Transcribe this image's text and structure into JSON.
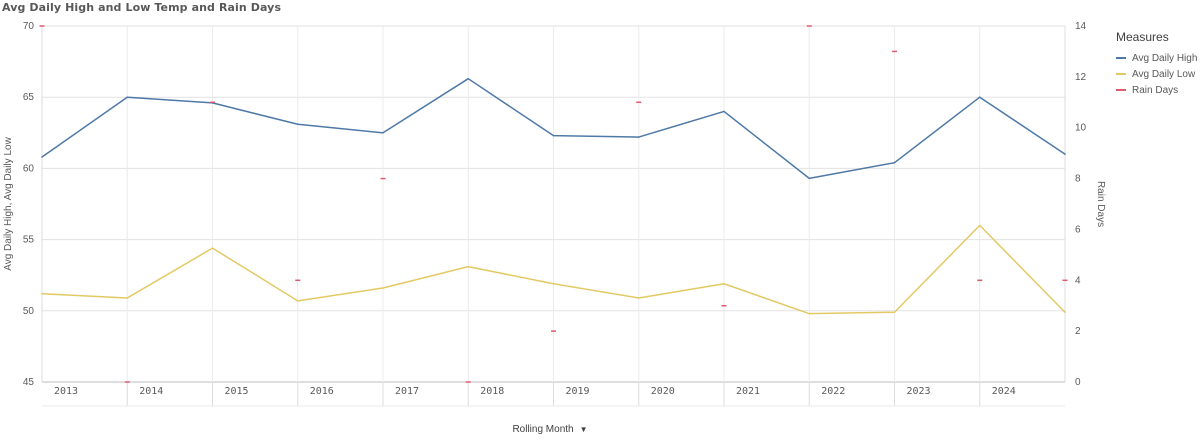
{
  "chart_data": {
    "type": "line",
    "title": "Avg Daily High and Low Temp and Rain Days",
    "xlabel": "Rolling Month",
    "ylabel_left": "Avg Daily High, Avg Daily Low",
    "ylabel_right": "Rain Days",
    "ylim_left": [
      45,
      70
    ],
    "yticks_left": [
      "45",
      "50",
      "55",
      "60",
      "65",
      "70"
    ],
    "ylim_right": [
      0,
      14
    ],
    "yticks_right": [
      "0",
      "2",
      "4",
      "6",
      "8",
      "10",
      "12",
      "14"
    ],
    "categories": [
      "2013",
      "2014",
      "2015",
      "2016",
      "2017",
      "2018",
      "2019",
      "2020",
      "2021",
      "2022",
      "2023",
      "2024"
    ],
    "grid": true,
    "legend_title": "Measures",
    "legend_position": "right",
    "x": [
      2012.9,
      2013.9,
      2014.9,
      2015.9,
      2016.9,
      2017.9,
      2018.9,
      2019.9,
      2020.9,
      2021.9,
      2022.9,
      2023.9,
      2024.9
    ],
    "series": [
      {
        "name": "Avg Daily High",
        "axis": "left",
        "style": "line",
        "color": "#4e79a7",
        "values": [
          60.8,
          65.0,
          64.6,
          63.1,
          62.5,
          66.3,
          62.3,
          62.2,
          64.0,
          59.3,
          60.4,
          65.0,
          61.0
        ]
      },
      {
        "name": "Avg Daily Low",
        "axis": "left",
        "style": "line",
        "color": "#e3c964",
        "values": [
          51.2,
          50.9,
          54.4,
          50.7,
          51.6,
          53.1,
          51.9,
          50.9,
          51.9,
          49.8,
          49.9,
          56.0,
          49.9
        ]
      },
      {
        "name": "Rain Days",
        "axis": "right",
        "style": "marker",
        "color": "#e05a6d",
        "values": [
          14,
          0,
          11,
          4,
          8,
          0,
          2,
          11,
          3,
          14,
          13,
          4,
          4
        ]
      }
    ]
  }
}
